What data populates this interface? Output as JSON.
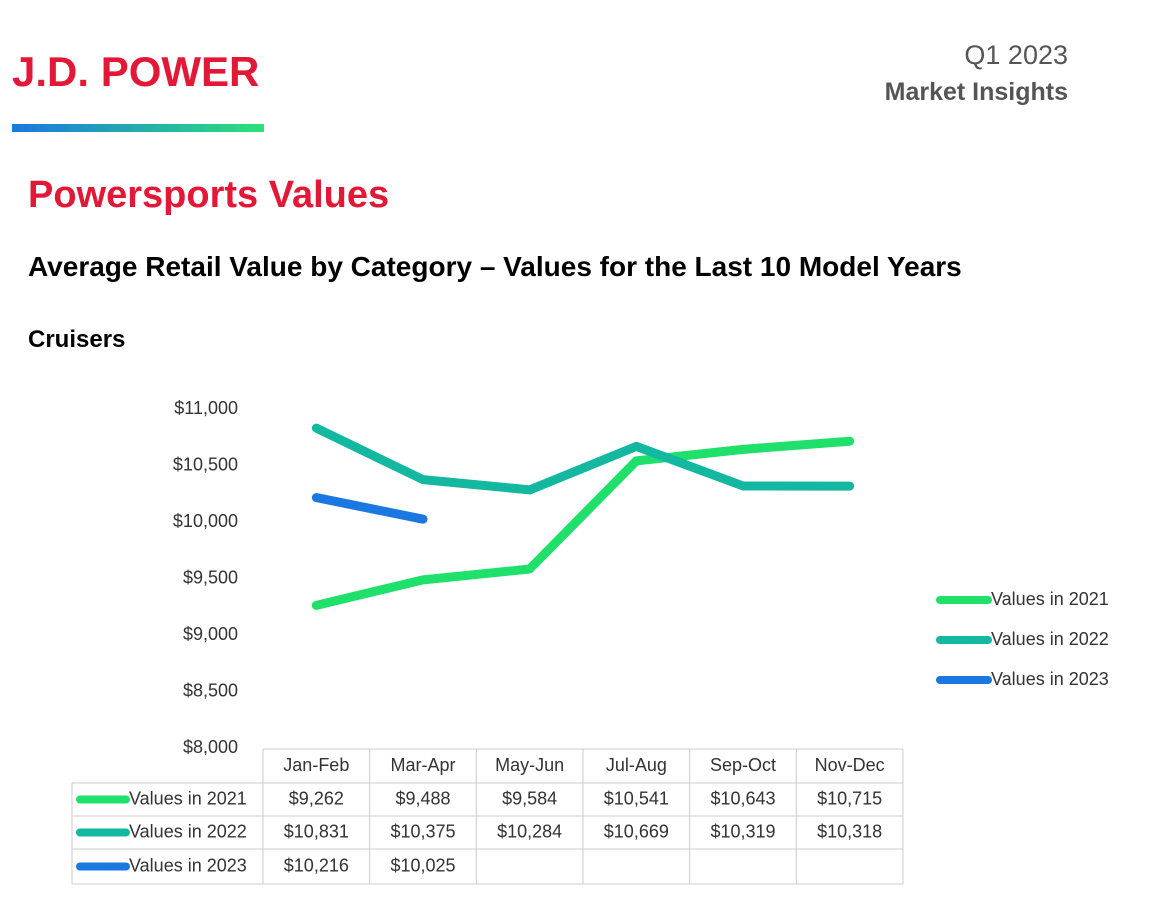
{
  "header": {
    "logo": "J.D. POWER",
    "period": "Q1 2023",
    "subtitle": "Market Insights"
  },
  "page_title": "Powersports Values",
  "heading": "Average Retail Value by Category – Values for the Last 10 Model Years",
  "section": "Cruisers",
  "chart_data": {
    "type": "line",
    "categories": [
      "Jan-Feb",
      "Mar-Apr",
      "May-Jun",
      "Jul-Aug",
      "Sep-Oct",
      "Nov-Dec"
    ],
    "series": [
      {
        "name": "Values in 2021",
        "color": "#1ee06a",
        "values": [
          9262,
          9488,
          9584,
          10541,
          10643,
          10715
        ],
        "value_labels": [
          "$9,262",
          "$9,488",
          "$9,584",
          "$10,541",
          "$10,643",
          "$10,715"
        ]
      },
      {
        "name": "Values in 2022",
        "color": "#14b8a0",
        "values": [
          10831,
          10375,
          10284,
          10669,
          10319,
          10318
        ],
        "value_labels": [
          "$10,831",
          "$10,375",
          "$10,284",
          "$10,669",
          "$10,319",
          "$10,318"
        ]
      },
      {
        "name": "Values in 2023",
        "color": "#1a78e0",
        "values": [
          10216,
          10025,
          null,
          null,
          null,
          null
        ],
        "value_labels": [
          "$10,216",
          "$10,025",
          null,
          null,
          null,
          null
        ]
      }
    ],
    "ylim": [
      8000,
      11000
    ],
    "yticks": [
      {
        "value": 8000,
        "label": "$8,000"
      },
      {
        "value": 8500,
        "label": "$8,500"
      },
      {
        "value": 9000,
        "label": "$9,000"
      },
      {
        "value": 9500,
        "label": "$9,500"
      },
      {
        "value": 10000,
        "label": "$10,000"
      },
      {
        "value": 10500,
        "label": "$10,500"
      },
      {
        "value": 11000,
        "label": "$11,000"
      }
    ],
    "legend": "right",
    "grid": false
  }
}
